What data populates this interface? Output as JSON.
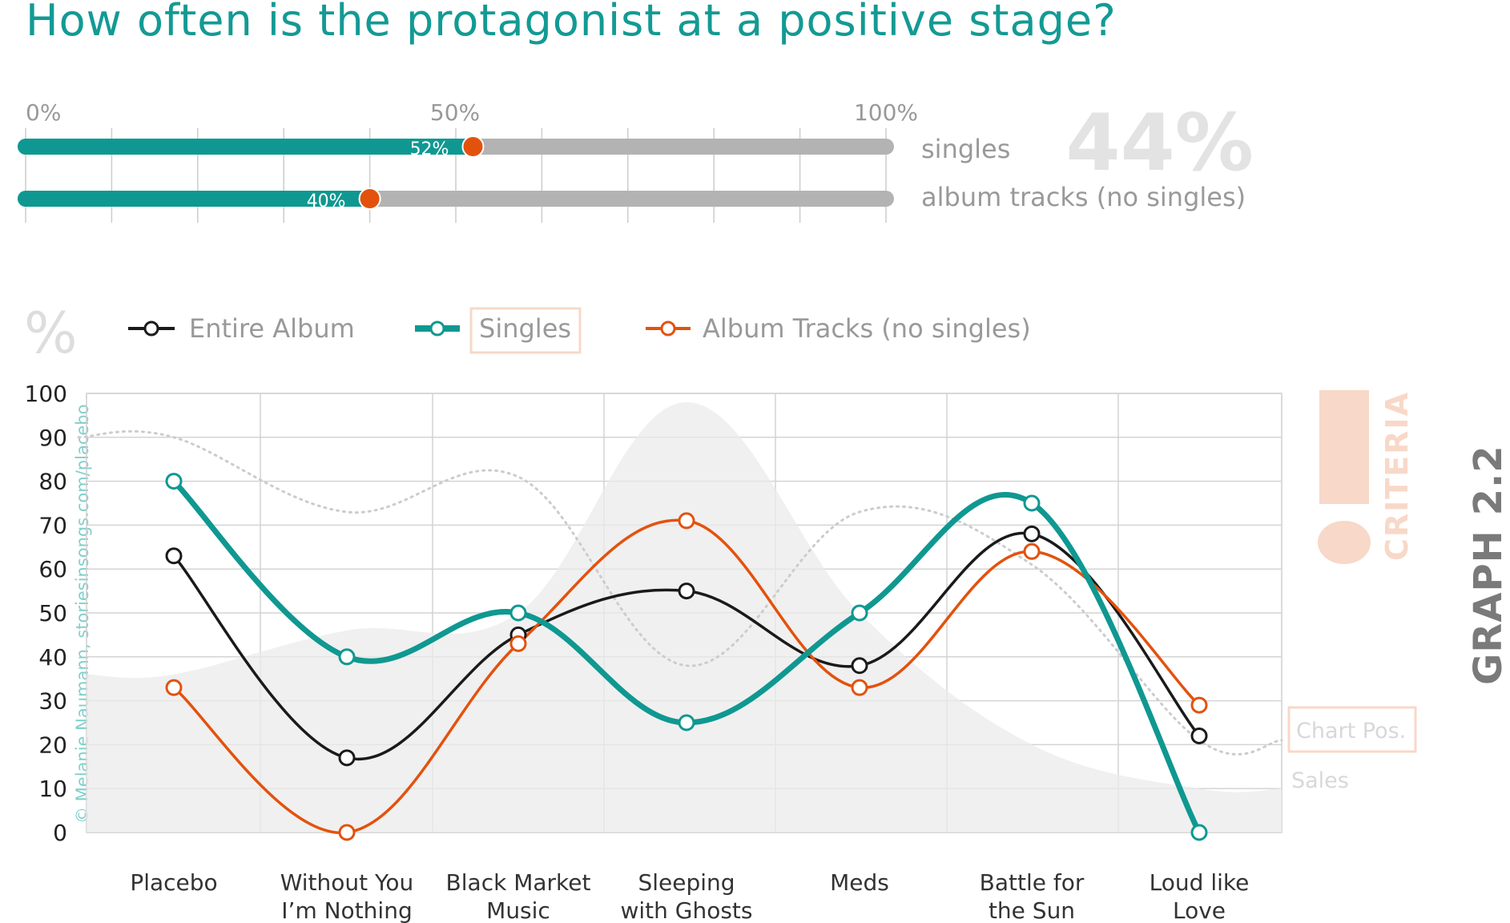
{
  "title": "How often is the protagonist at a positive stage?",
  "graph_id": "GRAPH 2.2",
  "credit": "© Melanie Naumann, storiesinsongs.com/placebo",
  "criteria_label": "CRITERIA",
  "colors": {
    "teal": "#0f9891",
    "orange": "#e3520d",
    "black": "#1a1a1a",
    "track": "#b3b3b3",
    "peach": "#f8d8c8"
  },
  "summary": {
    "axis_labels": [
      "0%",
      "50%",
      "100%"
    ],
    "big_value": "44%",
    "bars": [
      {
        "label": "singles",
        "value": 52,
        "value_label": "52%"
      },
      {
        "label": "album tracks (no singles)",
        "value": 40,
        "value_label": "40%"
      }
    ]
  },
  "legend": {
    "percent_sign": "%",
    "entire_album": "Entire Album",
    "singles": "Singles",
    "album_tracks": "Album Tracks (no singles)",
    "chart_pos": "Chart Pos.",
    "sales": "Sales"
  },
  "chart_data": {
    "type": "line",
    "title": "How often is the protagonist at a positive stage?",
    "ylabel": "%",
    "ylim": [
      0,
      100
    ],
    "yticks": [
      0,
      10,
      20,
      30,
      40,
      50,
      60,
      70,
      80,
      90,
      100
    ],
    "categories": [
      "Placebo",
      "Without You I’m Nothing",
      "Black Market Music",
      "Sleeping with Ghosts",
      "Meds",
      "Battle for the Sun",
      "Loud like Love"
    ],
    "category_lines": [
      [
        "Placebo"
      ],
      [
        "Without You",
        "I’m Nothing"
      ],
      [
        "Black Market",
        "Music"
      ],
      [
        "Sleeping",
        "with Ghosts"
      ],
      [
        "Meds"
      ],
      [
        "Battle for",
        "the Sun"
      ],
      [
        "Loud like",
        "Love"
      ]
    ],
    "series": [
      {
        "name": "Entire Album",
        "values": [
          63,
          17,
          45,
          55,
          38,
          68,
          22
        ]
      },
      {
        "name": "Singles",
        "values": [
          80,
          40,
          50,
          25,
          50,
          75,
          0
        ]
      },
      {
        "name": "Album Tracks (no singles)",
        "values": [
          33,
          0,
          43,
          71,
          33,
          64,
          29
        ]
      }
    ],
    "background_series": [
      {
        "name": "Sales",
        "style": "filled area",
        "values": [
          36,
          46,
          50,
          98,
          50,
          20,
          10
        ]
      },
      {
        "name": "Chart Pos.",
        "style": "dotted line",
        "values": [
          90,
          73,
          81,
          38,
          73,
          61,
          21
        ]
      }
    ]
  }
}
